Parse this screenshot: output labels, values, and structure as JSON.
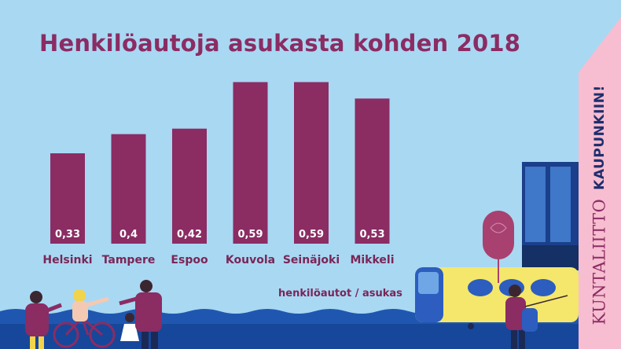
{
  "title": "Henkilöautoja asukasta kohden 2018",
  "unit_label": "henkilöautot / asukas",
  "brand": {
    "slogan": "KAUPUNKIIN!",
    "logo": "KUNTALIITTO",
    "strip_color": "#f7bdd0"
  },
  "colors": {
    "background": "#a9d8f3",
    "bar": "#8b2c63",
    "text": "#8b2c63",
    "value_text": "#ffffff"
  },
  "chart_data": {
    "type": "bar",
    "title": "Henkilöautoja asukasta kohden 2018",
    "xlabel": "",
    "ylabel": "henkilöautot / asukas",
    "categories": [
      "Helsinki",
      "Tampere",
      "Espoo",
      "Kouvola",
      "Seinäjoki",
      "Mikkeli"
    ],
    "values": [
      0.33,
      0.4,
      0.42,
      0.59,
      0.59,
      0.53
    ],
    "value_labels": [
      "0,33",
      "0,4",
      "0,42",
      "0,59",
      "0,59",
      "0,53"
    ],
    "ylim": [
      0,
      0.62
    ],
    "grid": false,
    "legend": "none"
  }
}
